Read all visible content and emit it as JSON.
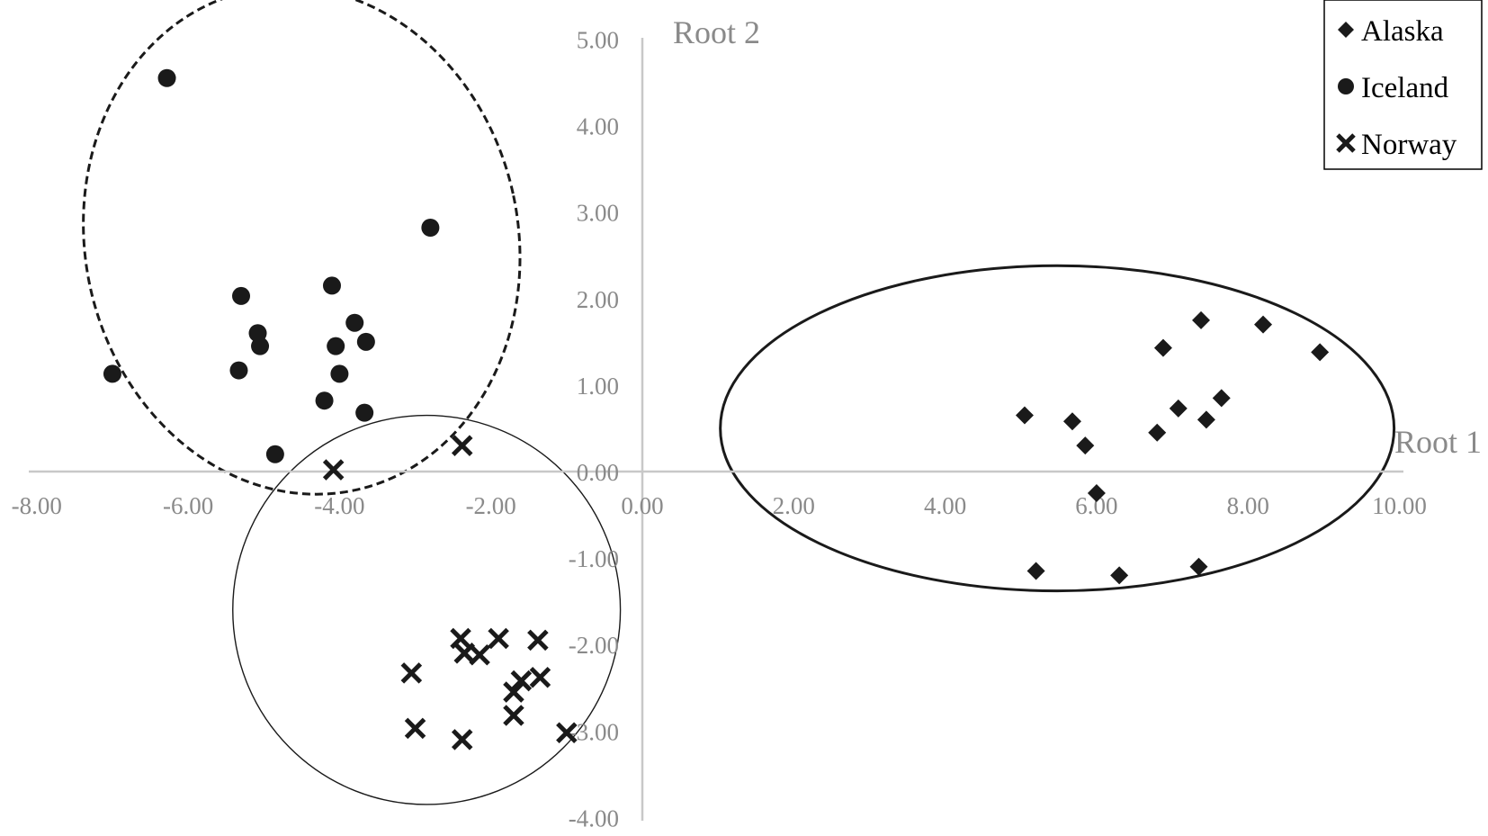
{
  "chart_data": {
    "type": "scatter",
    "xlabel": "Root 1",
    "ylabel": "Root 2",
    "xlim": [
      -8,
      10
    ],
    "ylim": [
      -4,
      5
    ],
    "x_ticks": [
      "-8.00",
      "-6.00",
      "-4.00",
      "-2.00",
      "0.00",
      "2.00",
      "4.00",
      "6.00",
      "8.00",
      "10.00"
    ],
    "y_ticks": [
      "5.00",
      "4.00",
      "3.00",
      "2.00",
      "1.00",
      "0.00",
      "-1.00",
      "-2.00",
      "-3.00",
      "-4.00"
    ],
    "legend_position": "top-right",
    "axis_color": "#c8c8c8",
    "tick_color": "#8a8a8a",
    "marker_color": "#1a1a1a",
    "series": [
      {
        "name": "Alaska",
        "marker": "diamond",
        "points": [
          [
            5.05,
            0.65
          ],
          [
            5.68,
            0.58
          ],
          [
            5.85,
            0.3
          ],
          [
            6.0,
            -0.25
          ],
          [
            6.88,
            1.43
          ],
          [
            7.08,
            0.73
          ],
          [
            7.38,
            1.75
          ],
          [
            7.45,
            0.6
          ],
          [
            7.65,
            0.85
          ],
          [
            6.8,
            0.45
          ],
          [
            8.2,
            1.7
          ],
          [
            8.95,
            1.38
          ],
          [
            5.2,
            -1.15
          ],
          [
            6.3,
            -1.2
          ],
          [
            7.35,
            -1.1
          ]
        ]
      },
      {
        "name": "Iceland",
        "marker": "circle",
        "points": [
          [
            -6.28,
            4.55
          ],
          [
            -2.8,
            2.82
          ],
          [
            -5.3,
            2.03
          ],
          [
            -4.1,
            2.15
          ],
          [
            -5.08,
            1.6
          ],
          [
            -5.05,
            1.45
          ],
          [
            -3.8,
            1.72
          ],
          [
            -4.05,
            1.45
          ],
          [
            -3.65,
            1.5
          ],
          [
            -7.0,
            1.13
          ],
          [
            -5.33,
            1.17
          ],
          [
            -4.0,
            1.13
          ],
          [
            -4.2,
            0.82
          ],
          [
            -3.67,
            0.68
          ],
          [
            -4.85,
            0.2
          ]
        ]
      },
      {
        "name": "Norway",
        "marker": "x",
        "points": [
          [
            -2.38,
            0.3
          ],
          [
            -4.08,
            0.02
          ],
          [
            -2.4,
            -1.93
          ],
          [
            -1.9,
            -1.93
          ],
          [
            -1.38,
            -1.95
          ],
          [
            -2.35,
            -2.1
          ],
          [
            -2.15,
            -2.12
          ],
          [
            -3.05,
            -2.33
          ],
          [
            -1.6,
            -2.42
          ],
          [
            -1.35,
            -2.38
          ],
          [
            -1.7,
            -2.55
          ],
          [
            -1.7,
            -2.82
          ],
          [
            -3.0,
            -2.97
          ],
          [
            -2.38,
            -3.1
          ],
          [
            -1.0,
            -3.02
          ]
        ]
      }
    ],
    "groups": [
      {
        "cx": -4.5,
        "cy": 2.67,
        "rx": 2.86,
        "ry": 2.95,
        "rotation_deg": -12,
        "style": "dashed",
        "stroke_width": 3
      },
      {
        "cx": -2.85,
        "cy": -1.6,
        "rx": 2.56,
        "ry": 2.25,
        "rotation_deg": 0,
        "style": "solid",
        "stroke_width": 1.4
      },
      {
        "cx": 5.48,
        "cy": 0.5,
        "rx": 4.45,
        "ry": 1.88,
        "rotation_deg": 0,
        "style": "solid",
        "stroke_width": 3
      }
    ]
  }
}
